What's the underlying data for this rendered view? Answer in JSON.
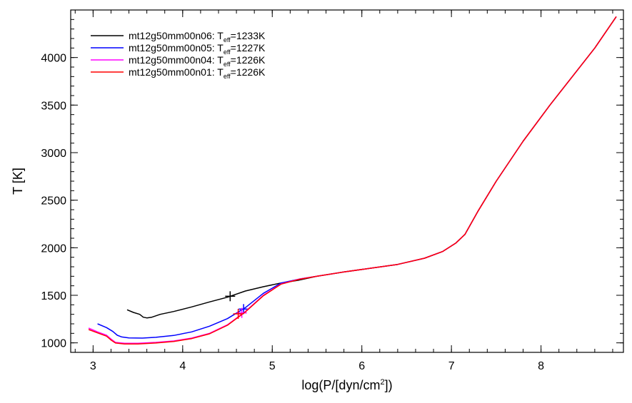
{
  "chart_data": {
    "type": "line",
    "title": "",
    "xlabel": "log(P/[dyn/cm²])",
    "ylabel": "T [K]",
    "xlim": [
      2.75,
      8.92
    ],
    "ylim": [
      900,
      4500
    ],
    "xticks": [
      3,
      4,
      5,
      6,
      7,
      8
    ],
    "yticks": [
      1000,
      1500,
      2000,
      2500,
      3000,
      3500,
      4000
    ],
    "grid": false,
    "legend_position": "top-left",
    "series": [
      {
        "name": "mt12g50mm00n06: Teff=1233K",
        "name_prefix": "mt12g50mm00n06: T",
        "name_sub": "eff",
        "name_suffix": "=1233K",
        "color": "#000000",
        "x": [
          3.38,
          3.45,
          3.52,
          3.56,
          3.6,
          3.65,
          3.75,
          3.9,
          4.1,
          4.3,
          4.5,
          4.7,
          4.9,
          5.1,
          5.3,
          5.5,
          5.8,
          6.1,
          6.4,
          6.7,
          6.9,
          7.05,
          7.15,
          7.3,
          7.5,
          7.8,
          8.1,
          8.4,
          8.6,
          8.84
        ],
        "y": [
          1348,
          1320,
          1300,
          1270,
          1262,
          1268,
          1300,
          1330,
          1378,
          1430,
          1480,
          1545,
          1590,
          1630,
          1660,
          1700,
          1745,
          1785,
          1825,
          1890,
          1960,
          2050,
          2140,
          2390,
          2700,
          3120,
          3500,
          3860,
          4100,
          4430
        ],
        "marker": {
          "x": 4.53,
          "y": 1490
        }
      },
      {
        "name": "mt12g50mm00n05: Teff=1227K",
        "name_prefix": "mt12g50mm00n05: T",
        "name_sub": "eff",
        "name_suffix": "=1227K",
        "color": "#0000ff",
        "x": [
          3.05,
          3.15,
          3.22,
          3.27,
          3.32,
          3.4,
          3.55,
          3.7,
          3.9,
          4.1,
          4.3,
          4.5,
          4.7,
          4.9,
          5.1,
          5.3,
          5.5,
          5.8,
          6.1,
          6.4,
          6.7,
          6.9,
          7.05,
          7.15,
          7.3,
          7.5,
          7.8,
          8.1,
          8.4,
          8.6,
          8.84
        ],
        "y": [
          1200,
          1160,
          1120,
          1080,
          1062,
          1052,
          1050,
          1058,
          1078,
          1115,
          1175,
          1255,
          1370,
          1520,
          1630,
          1670,
          1700,
          1745,
          1785,
          1825,
          1890,
          1960,
          2050,
          2140,
          2390,
          2700,
          3120,
          3500,
          3860,
          4100,
          4430
        ],
        "marker": {
          "x": 4.68,
          "y": 1355
        }
      },
      {
        "name": "mt12g50mm00n04: Teff=1226K",
        "name_prefix": "mt12g50mm00n04: T",
        "name_sub": "eff",
        "name_suffix": "=1226K",
        "color": "#ff00ff",
        "x": [
          2.95,
          3.05,
          3.15,
          3.2,
          3.25,
          3.35,
          3.5,
          3.7,
          3.9,
          4.1,
          4.3,
          4.5,
          4.7,
          4.9,
          5.1,
          5.3,
          5.5,
          5.8,
          6.1,
          6.4,
          6.7,
          6.9,
          7.05,
          7.15,
          7.3,
          7.5,
          7.8,
          8.1,
          8.4,
          8.6,
          8.84
        ],
        "y": [
          1155,
          1115,
          1080,
          1040,
          1005,
          995,
          995,
          1005,
          1020,
          1050,
          1100,
          1190,
          1330,
          1500,
          1620,
          1670,
          1700,
          1745,
          1785,
          1825,
          1890,
          1960,
          2050,
          2140,
          2390,
          2700,
          3120,
          3500,
          3860,
          4100,
          4430
        ],
        "marker": {
          "x": 4.66,
          "y": 1315
        }
      },
      {
        "name": "mt12g50mm00n01: Teff=1226K",
        "name_prefix": "mt12g50mm00n01: T",
        "name_sub": "eff",
        "name_suffix": "=1226K",
        "color": "#ff0000",
        "x": [
          2.95,
          3.05,
          3.15,
          3.2,
          3.25,
          3.35,
          3.5,
          3.7,
          3.9,
          4.1,
          4.3,
          4.5,
          4.7,
          4.9,
          5.1,
          5.3,
          5.5,
          5.8,
          6.1,
          6.4,
          6.7,
          6.9,
          7.05,
          7.15,
          7.3,
          7.5,
          7.8,
          8.1,
          8.4,
          8.6,
          8.84
        ],
        "y": [
          1140,
          1105,
          1070,
          1030,
          998,
          988,
          988,
          998,
          1015,
          1045,
          1095,
          1185,
          1325,
          1495,
          1618,
          1668,
          1700,
          1745,
          1785,
          1825,
          1890,
          1960,
          2050,
          2140,
          2390,
          2700,
          3120,
          3500,
          3860,
          4100,
          4430
        ],
        "marker": {
          "x": 4.62,
          "y": 1305
        }
      }
    ]
  }
}
